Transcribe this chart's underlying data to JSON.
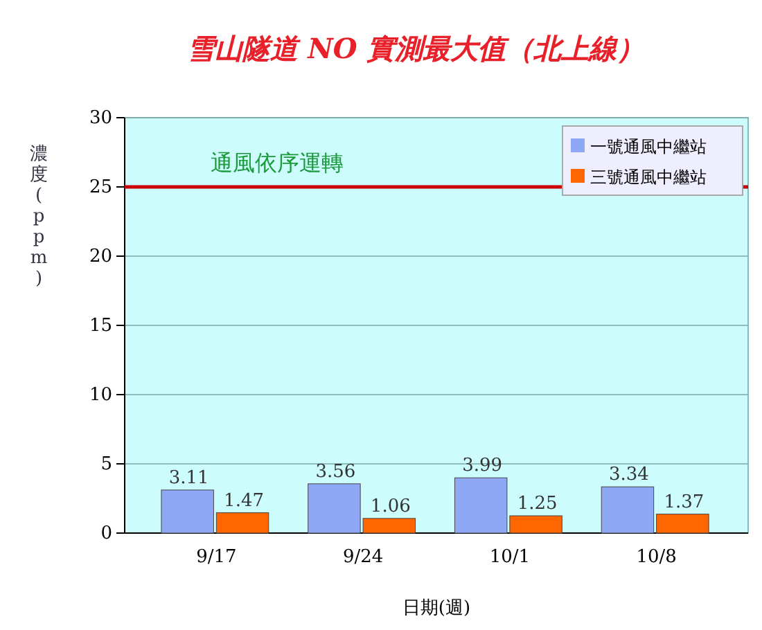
{
  "chart_data": {
    "type": "bar",
    "title": "雪山隧道 NO 實測最大值（北上線）",
    "xlabel": "日期(週)",
    "ylabel": "濃度(ppm)",
    "categories": [
      "9/17",
      "9/24",
      "10/1",
      "10/8"
    ],
    "series": [
      {
        "name": "一號通風中繼站",
        "color": "#8fa8f5",
        "values": [
          3.11,
          3.56,
          3.99,
          3.34
        ]
      },
      {
        "name": "三號通風中繼站",
        "color": "#ff6600",
        "values": [
          1.47,
          1.06,
          1.25,
          1.37
        ]
      }
    ],
    "ylim": [
      0,
      30
    ],
    "yticks": [
      0,
      5,
      10,
      15,
      20,
      25,
      30
    ],
    "grid": "y",
    "legend": "top right",
    "data_labels": true,
    "ref_lines": [
      {
        "axis": "y",
        "value": 25,
        "label": "通風依序運轉",
        "color": "#cc0000"
      }
    ]
  }
}
